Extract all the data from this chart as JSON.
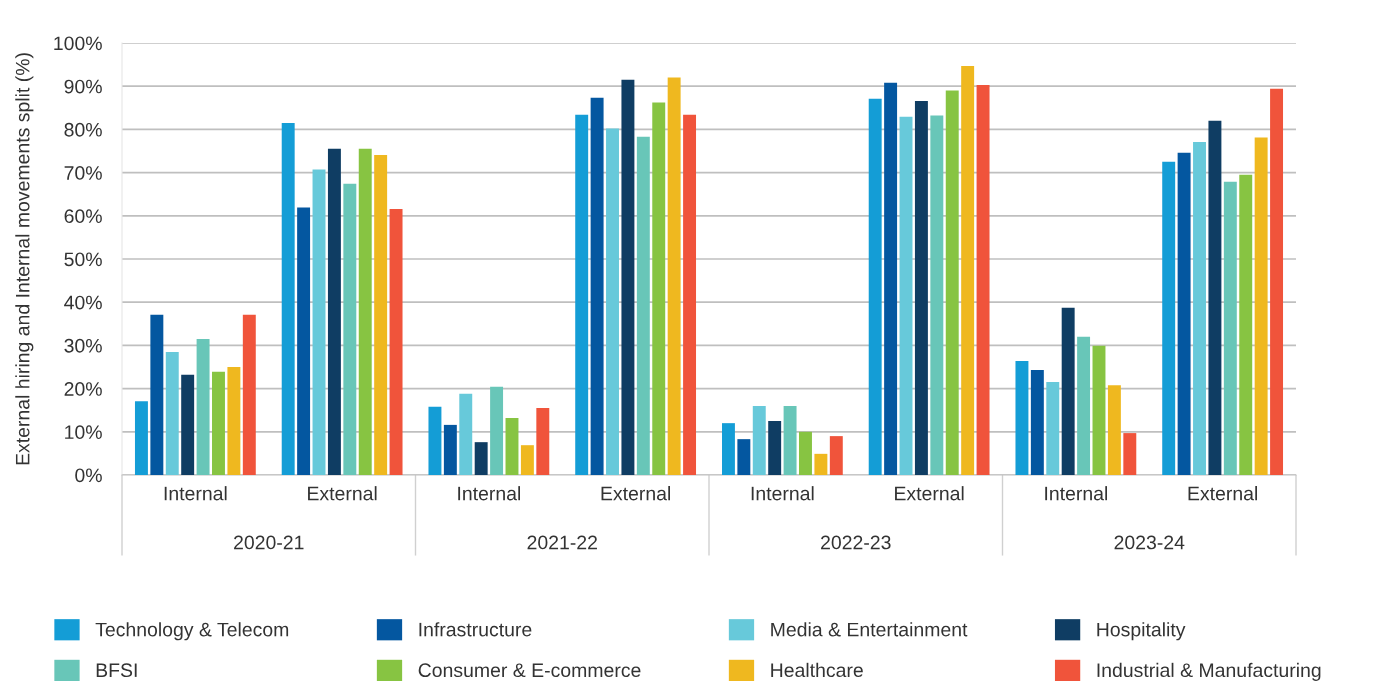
{
  "chart_data": {
    "type": "bar",
    "ylabel": "External hiring and Internal movements split (%)",
    "categories": [
      "Internal",
      "External",
      "Internal",
      "External",
      "Internal",
      "External",
      "Internal",
      "External"
    ],
    "annotations": [
      "2020-21",
      "2021-22",
      "2022-23",
      "2023-24"
    ],
    "series": [
      {
        "name": "Technology & Telecom",
        "color": "#149dd6",
        "values": [
          17.1,
          81.5,
          15.8,
          83.4,
          12.0,
          87.1,
          26.4,
          72.5
        ]
      },
      {
        "name": "Infrastructure",
        "color": "#0457a0",
        "values": [
          37.1,
          61.9,
          11.6,
          87.3,
          8.3,
          90.8,
          24.3,
          74.6
        ]
      },
      {
        "name": "Media & Entertainment",
        "color": "#67c9da",
        "values": [
          28.5,
          70.7,
          18.8,
          80.2,
          16.0,
          82.9,
          21.5,
          77.1
        ]
      },
      {
        "name": "Hospitality",
        "color": "#0f3d63",
        "values": [
          23.2,
          75.5,
          7.6,
          91.5,
          12.5,
          86.6,
          38.7,
          82.0
        ]
      },
      {
        "name": "BFSI",
        "color": "#68c6b8",
        "values": [
          31.5,
          67.4,
          20.4,
          78.3,
          16.0,
          83.2,
          32.0,
          67.9
        ]
      },
      {
        "name": "Consumer & E-commerce",
        "color": "#87c442",
        "values": [
          23.9,
          75.5,
          13.2,
          86.2,
          10.0,
          89.0,
          29.9,
          69.5
        ]
      },
      {
        "name": "Healthcare",
        "color": "#efb81f",
        "values": [
          25.0,
          74.1,
          6.9,
          92.0,
          4.9,
          94.7,
          20.8,
          78.1
        ]
      },
      {
        "name": "Industrial & Manufacturing",
        "color": "#f0543b",
        "values": [
          37.1,
          61.6,
          15.5,
          83.4,
          9.0,
          90.3,
          9.7,
          89.4
        ]
      }
    ],
    "ylim": [
      0,
      100
    ],
    "yticks": [
      {
        "value": 0,
        "label": "0%"
      },
      {
        "value": 10,
        "label": "10%"
      },
      {
        "value": 20,
        "label": "20%"
      },
      {
        "value": 30,
        "label": "30%"
      },
      {
        "value": 40,
        "label": "40%"
      },
      {
        "value": 50,
        "label": "50%"
      },
      {
        "value": 60,
        "label": "60%"
      },
      {
        "value": 70,
        "label": "70%"
      },
      {
        "value": 80,
        "label": "80%"
      },
      {
        "value": 90,
        "label": "90%"
      },
      {
        "value": 100,
        "label": "100%"
      }
    ],
    "grid": "y",
    "legend": "bottom"
  }
}
